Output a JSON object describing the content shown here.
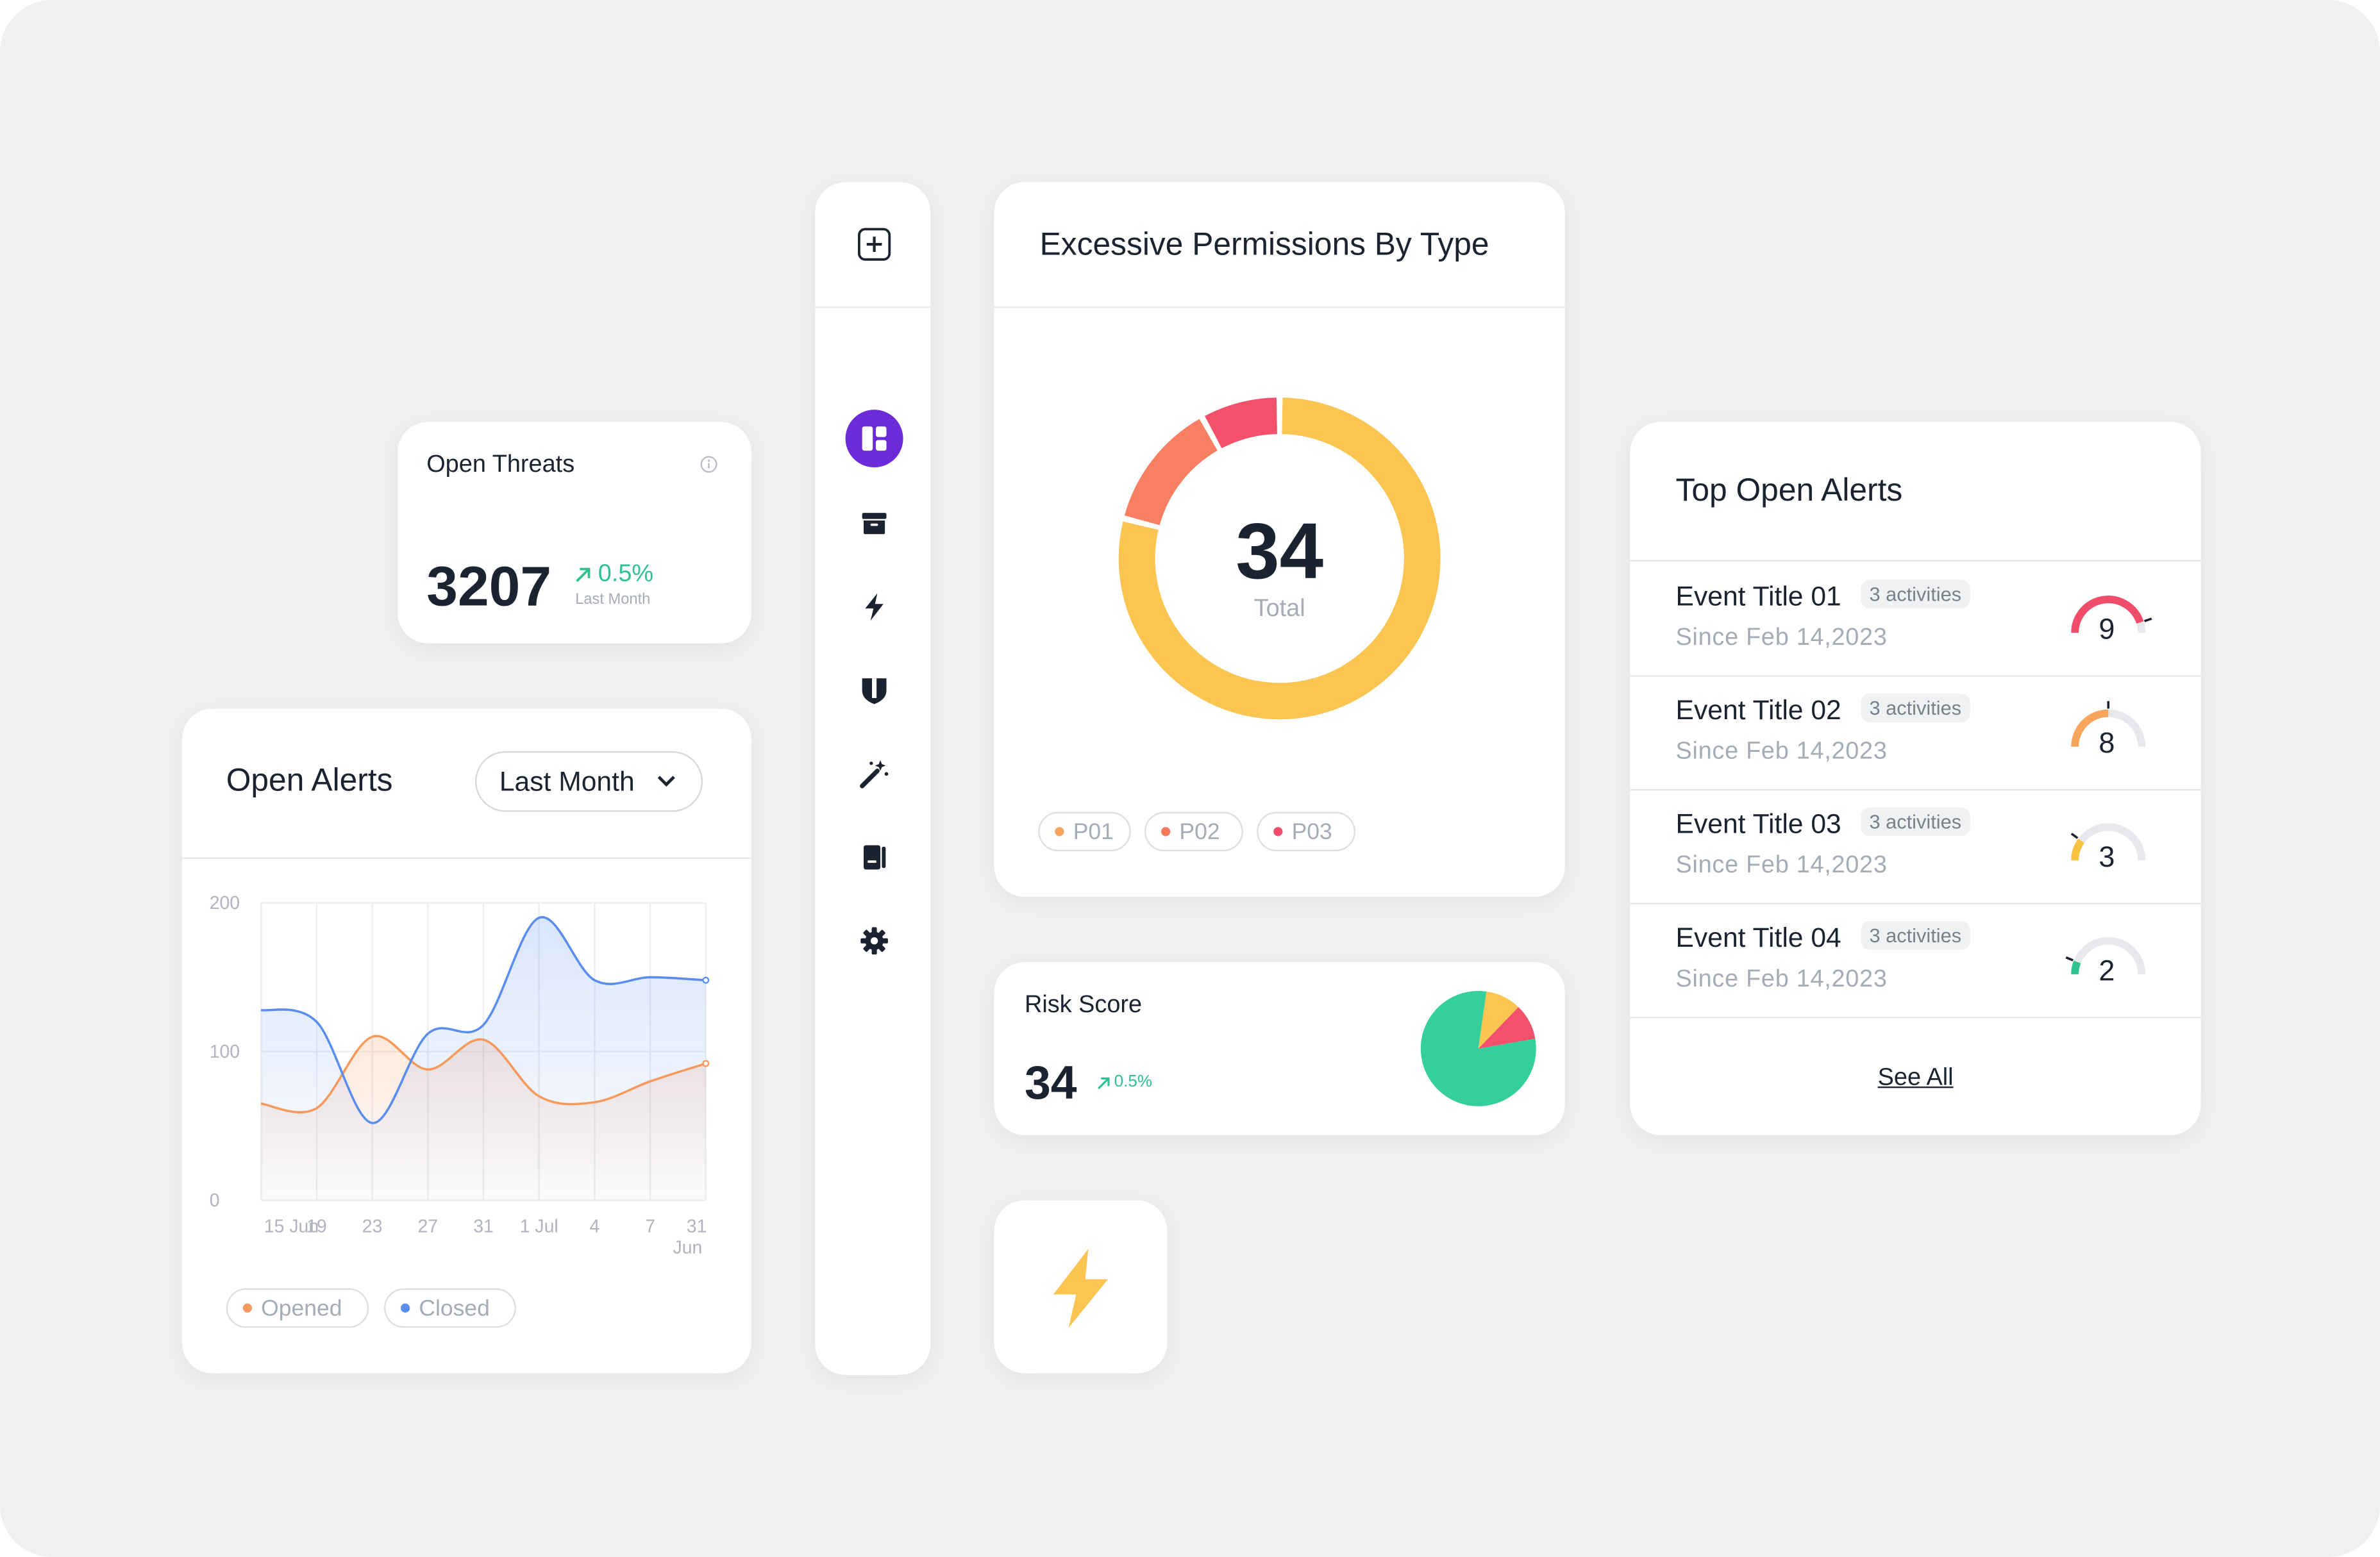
{
  "open_threats": {
    "title": "Open Threats",
    "value": "3207",
    "change": "0.5%",
    "period": "Last Month",
    "accent": "#2fc28e"
  },
  "open_alerts": {
    "title": "Open Alerts",
    "filter": {
      "selected": "Last Month"
    },
    "legend": [
      {
        "label": "Opened",
        "color": "#f59a5c"
      },
      {
        "label": "Closed",
        "color": "#5b8def"
      }
    ]
  },
  "sidebar": {
    "items": [
      {
        "icon": "plus-icon"
      },
      {
        "icon": "dashboard-icon",
        "active": true,
        "color": "#6c2bd9"
      },
      {
        "icon": "archive-icon"
      },
      {
        "icon": "lightning-icon"
      },
      {
        "icon": "shield-icon"
      },
      {
        "icon": "magic-wand-icon"
      },
      {
        "icon": "book-icon"
      },
      {
        "icon": "gear-icon"
      }
    ]
  },
  "permissions": {
    "title": "Excessive Permissions By Type",
    "total_value": "34",
    "total_label": "Total",
    "legend": [
      {
        "label": "P01",
        "color": "#f7a55a"
      },
      {
        "label": "P02",
        "color": "#f57a5c"
      },
      {
        "label": "P03",
        "color": "#f04d6a"
      }
    ]
  },
  "risk_score": {
    "title": "Risk Score",
    "value": "34",
    "change": "0.5%"
  },
  "top_alerts": {
    "title": "Top Open Alerts",
    "see_all": "See All",
    "items": [
      {
        "title": "Event Title 01",
        "activities": "3 activities",
        "since": "Since Feb 14,2023",
        "score": "9",
        "level": 0.9,
        "color": "#f04d6a"
      },
      {
        "title": "Event Title 02",
        "activities": "3 activities",
        "since": "Since Feb 14,2023",
        "score": "8",
        "level": 0.5,
        "color": "#f7a55a"
      },
      {
        "title": "Event Title 03",
        "activities": "3 activities",
        "since": "Since Feb 14,2023",
        "score": "3",
        "level": 0.2,
        "color": "#f5c242"
      },
      {
        "title": "Event Title 04",
        "activities": "3 activities",
        "since": "Since Feb 14,2023",
        "score": "2",
        "level": 0.12,
        "color": "#2fc28e"
      }
    ]
  },
  "chart_data": [
    {
      "type": "area",
      "title": "",
      "x": [
        "15 Jun",
        "19",
        "23",
        "27",
        "31",
        "1 Jul",
        "4",
        "7",
        "31 Jun"
      ],
      "ylim": [
        0,
        200
      ],
      "yticks": [
        0,
        100,
        200
      ],
      "grid": true,
      "series": [
        {
          "name": "Opened",
          "color": "#f59a5c",
          "values": [
            65,
            62,
            110,
            88,
            108,
            70,
            66,
            80,
            92
          ]
        },
        {
          "name": "Closed",
          "color": "#5b8def",
          "values": [
            128,
            120,
            52,
            112,
            118,
            190,
            148,
            150,
            148
          ]
        }
      ]
    },
    {
      "type": "pie",
      "title": "",
      "slices": [
        {
          "label": "P01",
          "value": 79,
          "color": "#fcc552"
        },
        {
          "label": "P02",
          "value": 13,
          "color": "#f87f62"
        },
        {
          "label": "P03",
          "value": 8,
          "color": "#f2506b"
        }
      ]
    },
    {
      "type": "pie",
      "title": "",
      "slices": [
        {
          "value": 80,
          "color": "#35cf9b"
        },
        {
          "value": 10,
          "color": "#fcc552"
        },
        {
          "value": 10,
          "color": "#f2506b"
        }
      ]
    }
  ]
}
